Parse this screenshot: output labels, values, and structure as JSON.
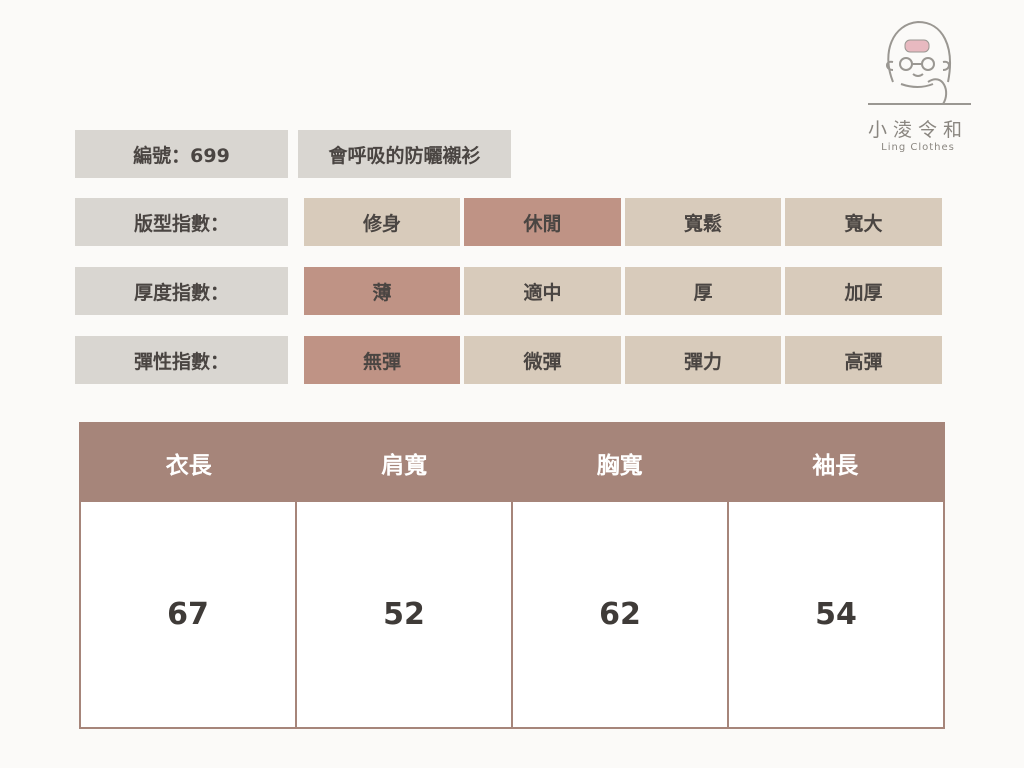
{
  "logo": {
    "name_cn": "小淩令和",
    "name_en": "Ling Clothes"
  },
  "product": {
    "id_label": "編號：699",
    "name": "會呼吸的防曬襯衫"
  },
  "indices": [
    {
      "label": "版型指數：",
      "options": [
        "修身",
        "休閒",
        "寬鬆",
        "寬大"
      ],
      "selected": 1
    },
    {
      "label": "厚度指數：",
      "options": [
        "薄",
        "適中",
        "厚",
        "加厚"
      ],
      "selected": 0
    },
    {
      "label": "彈性指數：",
      "options": [
        "無彈",
        "微彈",
        "彈力",
        "高彈"
      ],
      "selected": 0
    }
  ],
  "size_table": {
    "headers": [
      "衣長",
      "肩寬",
      "胸寬",
      "袖長"
    ],
    "values": [
      "67",
      "52",
      "62",
      "54"
    ]
  },
  "colors": {
    "background": "#fbfaf8",
    "label_bg": "#d9d6d1",
    "option_bg": "#d8cbbb",
    "selected_bg": "#bf9385",
    "table_header": "#a6857a"
  }
}
